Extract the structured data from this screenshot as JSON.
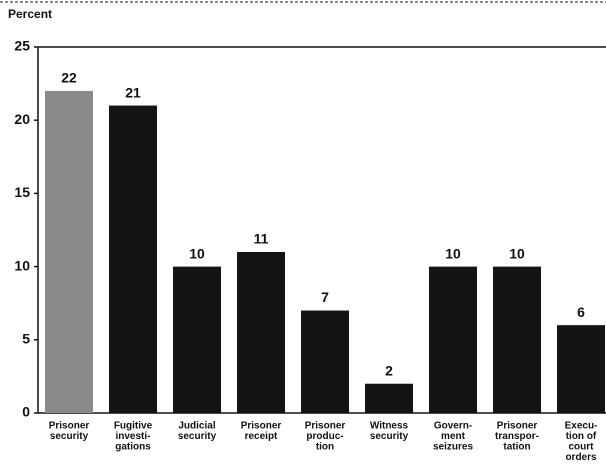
{
  "chart_data": {
    "type": "bar",
    "y_label": "Percent",
    "categories": [
      [
        "Prisoner",
        "security"
      ],
      [
        "Fugitive",
        "investi-",
        "gations"
      ],
      [
        "Judicial",
        "security"
      ],
      [
        "Prisoner",
        "receipt"
      ],
      [
        "Prisoner",
        "produc-",
        "tion"
      ],
      [
        "Witness",
        "security"
      ],
      [
        "Govern-",
        "ment",
        "seizures"
      ],
      [
        "Prisoner",
        "transpor-",
        "tation"
      ],
      [
        "Execu-",
        "tion of",
        "court",
        "orders"
      ]
    ],
    "values": [
      22,
      21,
      10,
      11,
      7,
      2,
      10,
      10,
      6
    ],
    "colors": [
      "#8a8a8a",
      "#141414",
      "#141414",
      "#141414",
      "#141414",
      "#141414",
      "#141414",
      "#141414",
      "#141414"
    ],
    "ylim": [
      0,
      25
    ],
    "yticks": [
      0,
      5,
      10,
      15,
      20,
      25
    ]
  }
}
